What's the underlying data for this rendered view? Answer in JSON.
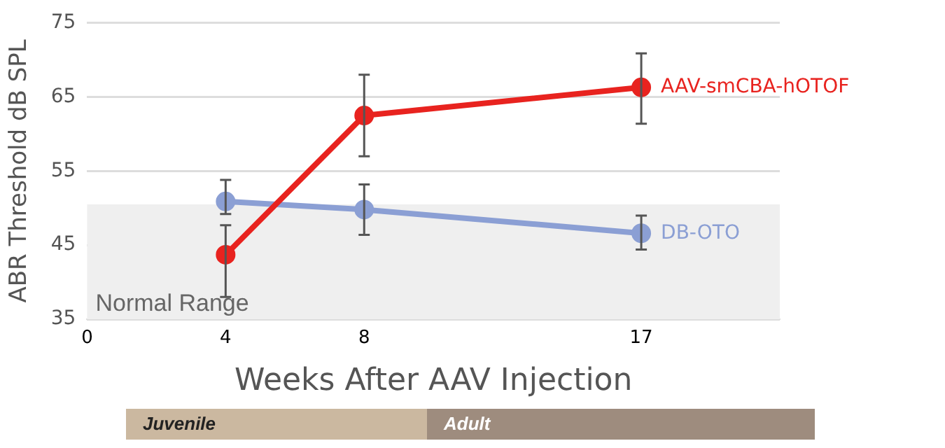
{
  "chart_data": {
    "type": "line",
    "ylabel": "ABR Threshold dB SPL",
    "xlabel": "Weeks After AAV Injection",
    "categories": [
      "0",
      "4",
      "8",
      null,
      "17",
      null
    ],
    "series": [
      {
        "name": "AAV-smCBA-hOTOF",
        "color": "#e8231f",
        "values": [
          null,
          43.7,
          62.5,
          null,
          66.3,
          null
        ],
        "errors": [
          null,
          [
            38,
            47.7
          ],
          [
            57,
            68
          ],
          null,
          [
            61.4,
            70.9
          ],
          null
        ]
      },
      {
        "name": "DB-OTO",
        "color": "#8b9fd4",
        "values": [
          null,
          50.9,
          49.8,
          null,
          46.6,
          null
        ],
        "errors": [
          null,
          [
            49.2,
            53.8
          ],
          [
            46.4,
            53.2
          ],
          null,
          [
            44.4,
            49
          ],
          null
        ]
      }
    ],
    "ylim": [
      35,
      75
    ],
    "yticks": [
      35,
      45,
      55,
      65,
      75
    ],
    "grid": "y",
    "marker": "circle",
    "legend": false,
    "bands": [
      {
        "axis": "y",
        "from": 35,
        "to": 50.5,
        "label": "Normal Range",
        "color": "#efefef"
      }
    ],
    "annotations": [
      "Juvenile",
      "Adult"
    ]
  }
}
